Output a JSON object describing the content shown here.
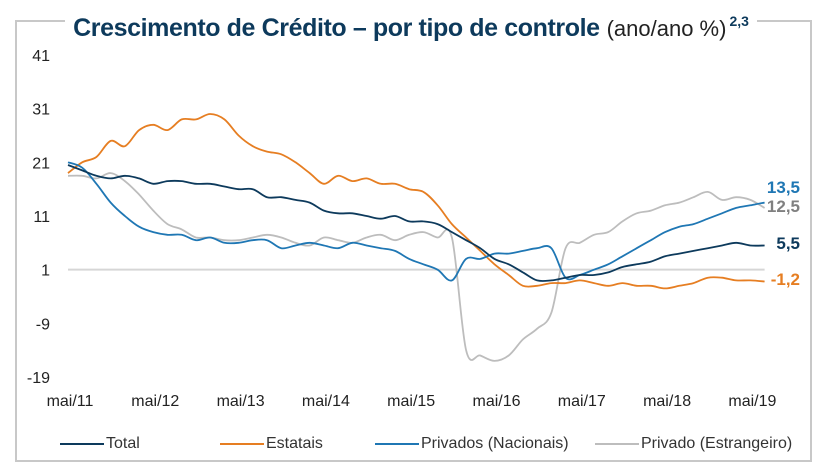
{
  "chart_data": {
    "type": "line",
    "title": "Crescimento de Crédito – por tipo de controle",
    "title_unit": "(ano/ano %)",
    "title_footnote": "2,3",
    "xlabel": "",
    "ylabel": "",
    "ylim": [
      -19,
      41
    ],
    "yticks": [
      41,
      31,
      21,
      11,
      1,
      -9,
      -19
    ],
    "xticks": [
      "mai/11",
      "mai/12",
      "mai/13",
      "mai/14",
      "mai/15",
      "mai/16",
      "mai/17",
      "mai/18",
      "mai/19"
    ],
    "x_start": "mai/11",
    "x_step_months": 2,
    "reference_line": 1,
    "grid": false,
    "legend_position": "bottom",
    "series": [
      {
        "name": "Total",
        "color": "#0d3a5c",
        "end_label": "5,5",
        "values": [
          20.5,
          19.5,
          18.5,
          18,
          18.5,
          18,
          17,
          17.5,
          17.5,
          17,
          17,
          16.5,
          16,
          16,
          14.5,
          14.5,
          14,
          13.5,
          12,
          11.5,
          11.5,
          11,
          10.5,
          11,
          10,
          10,
          9.5,
          8,
          6.5,
          5,
          3,
          2,
          0.5,
          -1,
          -1,
          -0.5,
          0,
          0,
          0.5,
          1.5,
          2,
          2.5,
          3.5,
          4,
          4.5,
          5,
          5.5,
          6,
          5.5,
          5.5
        ]
      },
      {
        "name": "Estatais",
        "color": "#e67e22",
        "end_label": "-1,2",
        "values": [
          19,
          21,
          22,
          25,
          24,
          27,
          28,
          27,
          29,
          29,
          30,
          29,
          26,
          24,
          23,
          22.5,
          21,
          19,
          17,
          18.5,
          17.5,
          18,
          17,
          17,
          16,
          15.5,
          13,
          9.5,
          7,
          4.5,
          2,
          0,
          -2,
          -2,
          -1.5,
          -1.5,
          -1,
          -1.5,
          -2,
          -1.5,
          -2,
          -2,
          -2.5,
          -2,
          -1.5,
          -0.5,
          -0.5,
          -1,
          -1,
          -1.2
        ]
      },
      {
        "name": "Privados (Nacionais)",
        "color": "#1f77b4",
        "end_label": "13,5",
        "values": [
          21,
          20,
          17,
          13.5,
          11,
          9,
          8,
          7.5,
          7.5,
          6.5,
          7,
          6,
          6,
          6.5,
          6.5,
          5,
          5.5,
          6,
          5.5,
          5,
          6,
          5.5,
          5,
          4.5,
          3,
          2,
          1,
          -1,
          3,
          3,
          4,
          4,
          4.5,
          5,
          5,
          -0.5,
          0,
          1,
          2,
          3.5,
          5,
          6.5,
          8,
          9,
          9.5,
          10.5,
          11.5,
          12.5,
          13,
          13.5
        ]
      },
      {
        "name": "Privado (Estrangeiro)",
        "color": "#bdbdbd",
        "end_label": "12,5",
        "values": [
          18.5,
          18.5,
          18,
          19,
          17.5,
          15,
          12,
          9.5,
          8.5,
          7,
          7,
          6.5,
          6.5,
          7,
          7.5,
          7,
          6,
          5.5,
          7,
          6.5,
          6,
          7,
          7.5,
          6.5,
          7.5,
          8,
          7,
          7,
          -14,
          -15,
          -16,
          -15,
          -12,
          -10,
          -7,
          5,
          6,
          7.5,
          8,
          10,
          11.5,
          12,
          13,
          13.5,
          14.5,
          15.5,
          14,
          14.5,
          14,
          12.5
        ]
      }
    ]
  },
  "legend": {
    "items": [
      "Total",
      "Estatais",
      "Privados (Nacionais)",
      "Privado (Estrangeiro)"
    ]
  }
}
